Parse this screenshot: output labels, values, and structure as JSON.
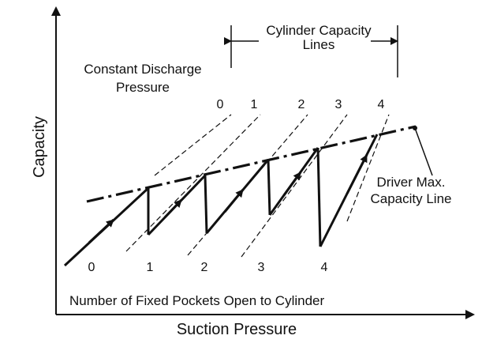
{
  "colors": {
    "ink": "#111111",
    "background": "#ffffff"
  },
  "axes": {
    "y_label": "Capacity",
    "x_label": "Suction Pressure"
  },
  "annotations": {
    "constant_discharge_line1": "Constant Discharge",
    "constant_discharge_line2": "Pressure",
    "cylinder_capacity_line1": "Cylinder Capacity",
    "cylinder_capacity_line2": "Lines",
    "driver_max_line1": "Driver Max.",
    "driver_max_line2": "Capacity Line",
    "pockets_caption": "Number of Fixed Pockets Open to Cylinder"
  },
  "capacity_line_labels": [
    "0",
    "1",
    "2",
    "3",
    "4"
  ],
  "pocket_labels": [
    "0",
    "1",
    "2",
    "3",
    "4"
  ]
}
